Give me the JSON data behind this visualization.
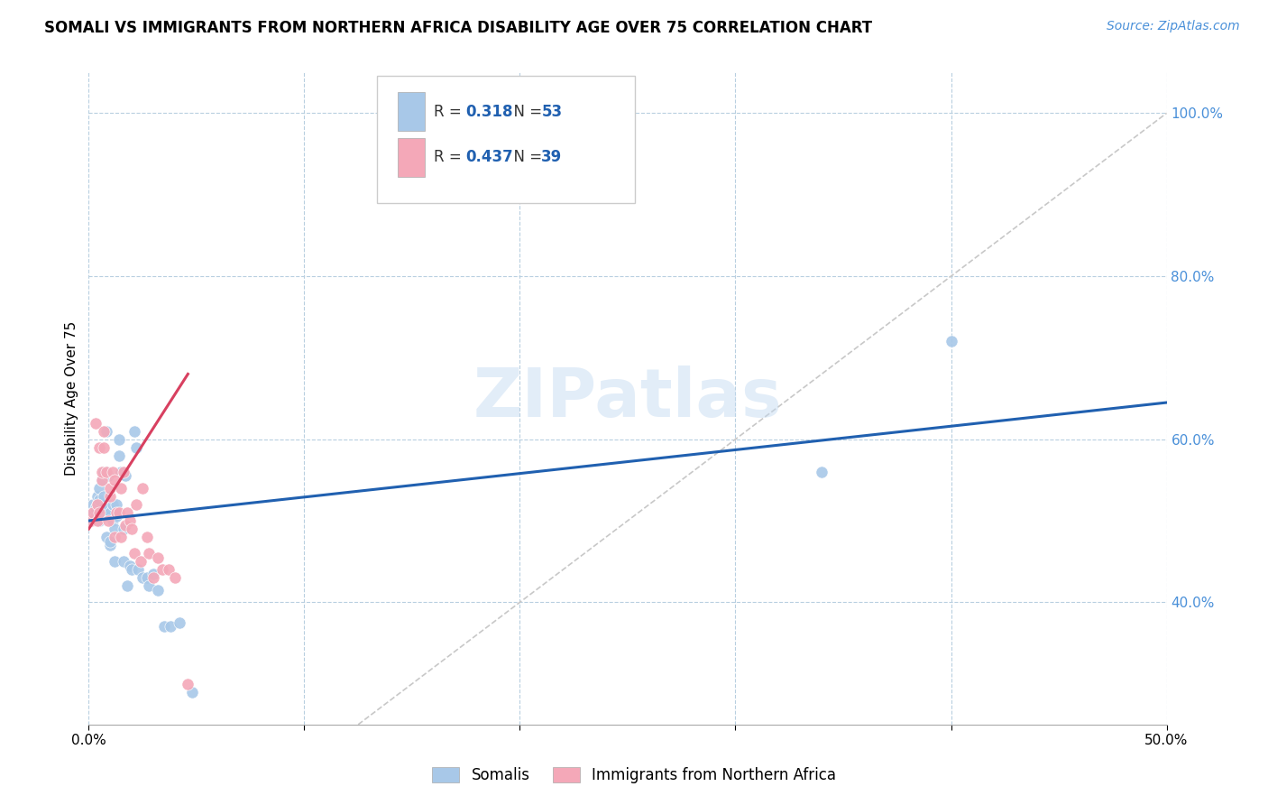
{
  "title": "SOMALI VS IMMIGRANTS FROM NORTHERN AFRICA DISABILITY AGE OVER 75 CORRELATION CHART",
  "source": "Source: ZipAtlas.com",
  "ylabel": "Disability Age Over 75",
  "xlim": [
    0.0,
    0.5
  ],
  "ylim": [
    0.25,
    1.05
  ],
  "somali_R": 0.318,
  "somali_N": 53,
  "nafr_R": 0.437,
  "nafr_N": 39,
  "somali_color": "#a8c8e8",
  "nafr_color": "#f4a8b8",
  "somali_line_color": "#2060b0",
  "nafr_line_color": "#d84060",
  "diagonal_color": "#c8c8c8",
  "watermark": "ZIPatlas",
  "legend_somali": "Somalis",
  "legend_nafr": "Immigrants from Northern Africa",
  "somali_x": [
    0.001,
    0.001,
    0.002,
    0.002,
    0.003,
    0.003,
    0.004,
    0.004,
    0.005,
    0.005,
    0.005,
    0.006,
    0.006,
    0.007,
    0.007,
    0.007,
    0.008,
    0.008,
    0.008,
    0.009,
    0.009,
    0.01,
    0.01,
    0.01,
    0.011,
    0.011,
    0.012,
    0.012,
    0.013,
    0.013,
    0.014,
    0.014,
    0.015,
    0.016,
    0.016,
    0.017,
    0.018,
    0.019,
    0.02,
    0.021,
    0.022,
    0.023,
    0.025,
    0.027,
    0.028,
    0.03,
    0.032,
    0.035,
    0.038,
    0.042,
    0.048,
    0.34,
    0.4
  ],
  "somali_y": [
    0.5,
    0.51,
    0.51,
    0.52,
    0.505,
    0.515,
    0.53,
    0.52,
    0.5,
    0.525,
    0.54,
    0.55,
    0.51,
    0.53,
    0.515,
    0.56,
    0.48,
    0.56,
    0.61,
    0.555,
    0.505,
    0.47,
    0.51,
    0.475,
    0.5,
    0.52,
    0.45,
    0.49,
    0.52,
    0.505,
    0.58,
    0.6,
    0.56,
    0.49,
    0.45,
    0.555,
    0.42,
    0.445,
    0.44,
    0.61,
    0.59,
    0.44,
    0.43,
    0.43,
    0.42,
    0.435,
    0.415,
    0.37,
    0.37,
    0.375,
    0.29,
    0.56,
    0.72
  ],
  "nafr_x": [
    0.001,
    0.002,
    0.003,
    0.004,
    0.004,
    0.005,
    0.005,
    0.006,
    0.006,
    0.007,
    0.007,
    0.008,
    0.009,
    0.01,
    0.01,
    0.011,
    0.012,
    0.012,
    0.013,
    0.014,
    0.015,
    0.015,
    0.016,
    0.017,
    0.018,
    0.019,
    0.02,
    0.021,
    0.022,
    0.024,
    0.025,
    0.027,
    0.028,
    0.03,
    0.032,
    0.034,
    0.037,
    0.04,
    0.046
  ],
  "nafr_y": [
    0.5,
    0.51,
    0.62,
    0.5,
    0.52,
    0.51,
    0.59,
    0.55,
    0.56,
    0.61,
    0.59,
    0.56,
    0.5,
    0.53,
    0.54,
    0.56,
    0.55,
    0.48,
    0.51,
    0.51,
    0.54,
    0.48,
    0.56,
    0.495,
    0.51,
    0.5,
    0.49,
    0.46,
    0.52,
    0.45,
    0.54,
    0.48,
    0.46,
    0.43,
    0.455,
    0.44,
    0.44,
    0.43,
    0.3
  ],
  "somali_line_x": [
    0.0,
    0.5
  ],
  "somali_line_y": [
    0.5,
    0.645
  ],
  "nafr_line_x": [
    0.0,
    0.046
  ],
  "nafr_line_y": [
    0.49,
    0.68
  ]
}
